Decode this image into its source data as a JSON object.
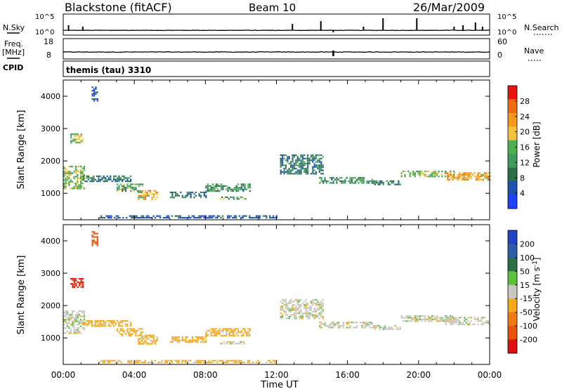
{
  "header": {
    "station": "Blackstone (fitACF)",
    "beam": "Beam 10",
    "date": "26/Mar/2009"
  },
  "top_panels": {
    "nsky_label": "N.Sky",
    "nsearch_label": "N.Search",
    "nsky_ticks": [
      "10^5",
      "10^0"
    ],
    "nsearch_ticks": [
      "10^5",
      "10^0"
    ],
    "freq_label": "Freq.",
    "freq_unit": "[MHz]",
    "freq_ticks": [
      "18",
      "8"
    ],
    "nave_label": "Nave",
    "nave_ticks": [
      "60",
      "0"
    ],
    "cpid_label": "CPID",
    "cpid_value": "themis (tau) 3310"
  },
  "colors": {
    "power_scale": [
      "#1f3fff",
      "#1c52b0",
      "#2d6e4a",
      "#3f9a5e",
      "#4caf50",
      "#f5c23e",
      "#f59a18",
      "#f06a10",
      "#e8140c"
    ],
    "velocity_scale": [
      "#2243c4",
      "#2e5da8",
      "#2e6e46",
      "#5cc23a",
      "#c8c8c0",
      "#f7a91a",
      "#f07a10",
      "#ea5208",
      "#e01010"
    ]
  },
  "chart_data": [
    {
      "type": "heatmap",
      "name": "power",
      "ylabel": "Slant Range [km]",
      "yticks": [
        "4000",
        "3000",
        "2000",
        "1000"
      ],
      "ylim": [
        180,
        4500
      ],
      "xlim": [
        0,
        24
      ],
      "colorbar_label": "Power [dB]",
      "colorbar_ticks": [
        "28",
        "24",
        "20",
        "16",
        "12",
        "8",
        "4"
      ],
      "colorbar_range": [
        0,
        32
      ],
      "regions": [
        {
          "t": [
            0.0,
            1.2
          ],
          "r": [
            1150,
            1850
          ],
          "value": 16
        },
        {
          "t": [
            0.4,
            1.1
          ],
          "r": [
            2550,
            2850
          ],
          "value": 18
        },
        {
          "t": [
            1.6,
            1.9
          ],
          "r": [
            3850,
            4300
          ],
          "value": 6
        },
        {
          "t": [
            1.1,
            3.8
          ],
          "r": [
            1350,
            1550
          ],
          "value": 9
        },
        {
          "t": [
            3.0,
            4.5
          ],
          "r": [
            1050,
            1300
          ],
          "value": 14
        },
        {
          "t": [
            4.2,
            5.3
          ],
          "r": [
            800,
            1100
          ],
          "value": 22
        },
        {
          "t": [
            6.0,
            8.0
          ],
          "r": [
            850,
            1050
          ],
          "value": 8
        },
        {
          "t": [
            8.0,
            10.5
          ],
          "r": [
            1050,
            1300
          ],
          "value": 12
        },
        {
          "t": [
            8.8,
            10.3
          ],
          "r": [
            800,
            900
          ],
          "value": 14
        },
        {
          "t": [
            12.2,
            14.6
          ],
          "r": [
            1600,
            2200
          ],
          "value": 9
        },
        {
          "t": [
            14.4,
            17.5
          ],
          "r": [
            1300,
            1500
          ],
          "value": 11
        },
        {
          "t": [
            17.5,
            19.0
          ],
          "r": [
            1250,
            1400
          ],
          "value": 9
        },
        {
          "t": [
            19.0,
            22.0
          ],
          "r": [
            1500,
            1700
          ],
          "value": 16
        },
        {
          "t": [
            21.5,
            24.0
          ],
          "r": [
            1400,
            1650
          ],
          "value": 22
        },
        {
          "t": [
            2.0,
            12.0
          ],
          "r": [
            220,
            320
          ],
          "value": 6
        }
      ]
    },
    {
      "type": "heatmap",
      "name": "velocity",
      "ylabel": "Slant Range [km]",
      "yticks": [
        "4000",
        "3000",
        "2000",
        "1000"
      ],
      "ylim": [
        180,
        4500
      ],
      "xlim": [
        0,
        24
      ],
      "colorbar_label": "Velocity [m s^-1]",
      "colorbar_ticks": [
        "200",
        "100",
        "50",
        "15",
        "-15",
        "-50",
        "-100",
        "-200"
      ],
      "colorbar_range": [
        -250,
        250
      ],
      "regions": [
        {
          "t": [
            0.0,
            1.2
          ],
          "r": [
            1150,
            1850
          ],
          "value": 0
        },
        {
          "t": [
            0.4,
            1.1
          ],
          "r": [
            2550,
            2850
          ],
          "value": -210
        },
        {
          "t": [
            1.6,
            1.9
          ],
          "r": [
            3850,
            4300
          ],
          "value": -160
        },
        {
          "t": [
            1.1,
            3.8
          ],
          "r": [
            1350,
            1550
          ],
          "value": -30
        },
        {
          "t": [
            3.0,
            4.5
          ],
          "r": [
            1050,
            1300
          ],
          "value": -30
        },
        {
          "t": [
            4.2,
            5.3
          ],
          "r": [
            800,
            1100
          ],
          "value": -30
        },
        {
          "t": [
            6.0,
            8.0
          ],
          "r": [
            850,
            1050
          ],
          "value": -30
        },
        {
          "t": [
            8.0,
            10.5
          ],
          "r": [
            1050,
            1300
          ],
          "value": -30
        },
        {
          "t": [
            8.8,
            10.3
          ],
          "r": [
            800,
            900
          ],
          "value": 0
        },
        {
          "t": [
            12.2,
            14.6
          ],
          "r": [
            1600,
            2200
          ],
          "value": 0
        },
        {
          "t": [
            14.4,
            17.5
          ],
          "r": [
            1300,
            1500
          ],
          "value": 0
        },
        {
          "t": [
            17.5,
            19.0
          ],
          "r": [
            1250,
            1400
          ],
          "value": 0
        },
        {
          "t": [
            19.0,
            22.0
          ],
          "r": [
            1500,
            1700
          ],
          "value": 0
        },
        {
          "t": [
            21.5,
            24.0
          ],
          "r": [
            1400,
            1650
          ],
          "value": 0
        },
        {
          "t": [
            2.0,
            12.0
          ],
          "r": [
            220,
            320
          ],
          "value": -30
        }
      ]
    }
  ],
  "x_axis": {
    "label": "Time UT",
    "ticks": [
      "00:00",
      "04:00",
      "08:00",
      "12:00",
      "16:00",
      "20:00",
      "00:00"
    ]
  }
}
